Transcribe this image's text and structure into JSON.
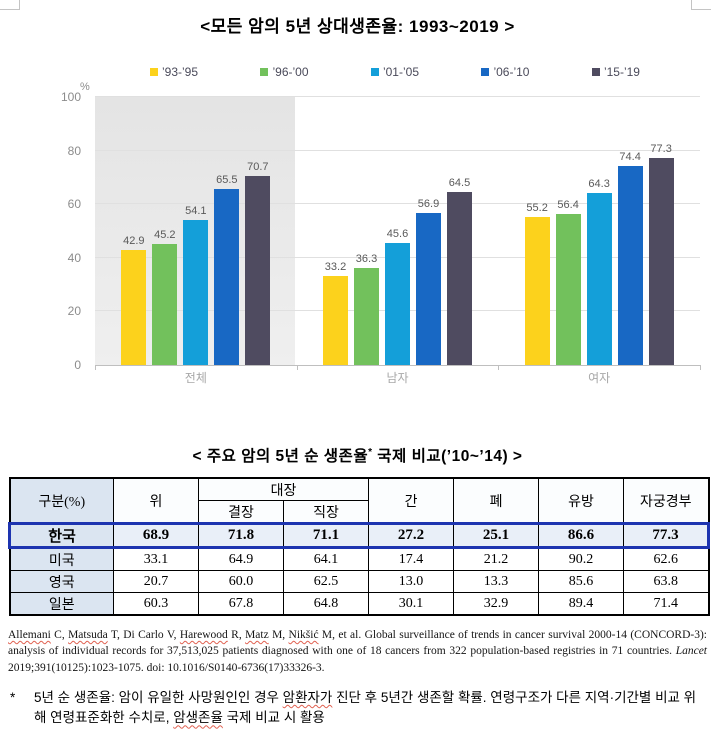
{
  "chart": {
    "title": "<모든 암의 5년 상대생존율: 1993~2019 >"
  },
  "chart_data": {
    "type": "bar",
    "title": "모든 암의 5년 상대생존율: 1993~2019",
    "unit_label": "%",
    "categories": [
      "전체",
      "남자",
      "여자"
    ],
    "series": [
      {
        "name": "’93-’95",
        "color": "#fcd21c",
        "values": [
          42.9,
          33.2,
          55.2
        ]
      },
      {
        "name": "’96-’00",
        "color": "#72c15c",
        "values": [
          45.2,
          36.3,
          56.4
        ]
      },
      {
        "name": "’01-’05",
        "color": "#149fd9",
        "values": [
          54.1,
          45.6,
          64.3
        ]
      },
      {
        "name": "’06-’10",
        "color": "#1868c4",
        "values": [
          65.5,
          56.9,
          74.4
        ]
      },
      {
        "name": "’15-’19",
        "color": "#4f4b60",
        "values": [
          70.7,
          64.5,
          77.3
        ]
      }
    ],
    "ylim": [
      0,
      100
    ],
    "yticks": [
      0,
      20,
      40,
      60,
      80,
      100
    ],
    "grid": true,
    "legend_position": "top",
    "highlighted_category": "전체"
  },
  "table": {
    "title_prefix": "< 주요 암의 5년 순 생존율",
    "title_sup": "*",
    "title_suffix": " 국제 비교(’10~’14) >",
    "header": {
      "lead_cols": [
        "구분(%)",
        "위"
      ],
      "group": {
        "label": "대장",
        "children": [
          "결장",
          "직장"
        ]
      },
      "tail_cols": [
        "간",
        "폐",
        "유방",
        "자궁경부"
      ]
    },
    "rows": [
      {
        "label": "한국",
        "values": [
          "68.9",
          "71.8",
          "71.1",
          "27.2",
          "25.1",
          "86.6",
          "77.3"
        ],
        "highlight": true
      },
      {
        "label": "미국",
        "values": [
          "33.1",
          "64.9",
          "64.1",
          "17.4",
          "21.2",
          "90.2",
          "62.6"
        ],
        "highlight": false
      },
      {
        "label": "영국",
        "values": [
          "20.7",
          "60.0",
          "62.5",
          "13.0",
          "13.3",
          "85.6",
          "63.8"
        ],
        "highlight": false
      },
      {
        "label": "일본",
        "values": [
          "60.3",
          "67.8",
          "64.8",
          "30.1",
          "32.9",
          "89.4",
          "71.4"
        ],
        "highlight": false
      }
    ]
  },
  "citation": {
    "segments": [
      {
        "t": "Allemani",
        "s": "wavy"
      },
      {
        "t": " C, "
      },
      {
        "t": "Matsuda",
        "s": "wavy"
      },
      {
        "t": " T, Di Carlo V, "
      },
      {
        "t": "Harewood",
        "s": "wavy"
      },
      {
        "t": " R, "
      },
      {
        "t": "Matz",
        "s": "wavy"
      },
      {
        "t": " M, "
      },
      {
        "t": "Nikšić",
        "s": "wavy"
      },
      {
        "t": " M, et al. Global surveillance of trends in cancer survival 2000-14 (CONCORD-3): analysis of individual records for 37,513,025 patients diagnosed with one of 18 cancers from 322 population-based registries in 71 countries. "
      },
      {
        "t": "Lancet",
        "s": "italic"
      },
      {
        "t": " 2019;391(10125):1023-1075. doi: 10.1016/S0140-6736(17)33326-3."
      }
    ]
  },
  "footnote": {
    "marker": "*",
    "segments": [
      {
        "t": "5년 순 생존율: 암이 유일한 사망원인인 경우 "
      },
      {
        "t": "암환자가",
        "s": "wavy"
      },
      {
        "t": " 진단 후 5년간 생존할 확률. 연령구조가 다른 지역·기간별 비교 위해 연령표준화한 수치로, "
      },
      {
        "t": "암생존율",
        "s": "wavy"
      },
      {
        "t": " 국제 비교 시 활용"
      }
    ]
  },
  "colors": {
    "highlight_border": "#1d34b0",
    "label_column_bg": "#dbe5f1",
    "highlight_row_bg": "#e9eff8",
    "gridline": "#e0e0e0",
    "shaded_region": "#e6e6e6",
    "bar_value_text": "#595959",
    "axis_text": "#8c8c8c"
  }
}
